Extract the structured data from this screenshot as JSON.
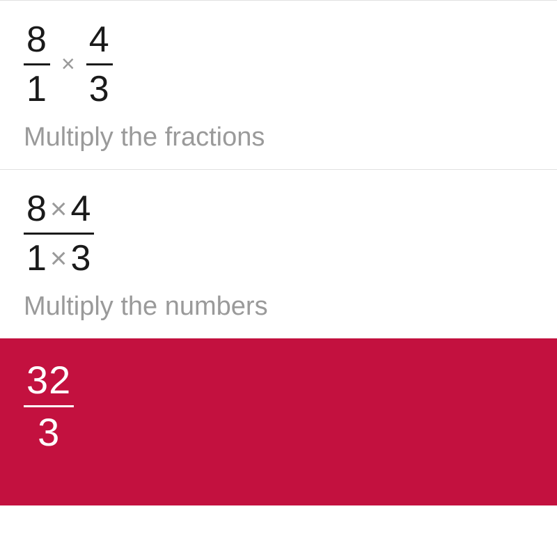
{
  "colors": {
    "background": "#ffffff",
    "text_primary": "#1a1a1a",
    "text_muted": "#9a9a9a",
    "divider": "#e0e0e0",
    "result_bg": "#c3113f",
    "result_text": "#ffffff"
  },
  "typography": {
    "math_fontsize": 52,
    "explain_fontsize": 38,
    "result_fontsize": 56
  },
  "steps": [
    {
      "type": "fraction-product",
      "left": {
        "numerator": "8",
        "denominator": "1"
      },
      "operator": "×",
      "right": {
        "numerator": "4",
        "denominator": "3"
      },
      "explain": "Multiply the fractions"
    },
    {
      "type": "fraction-single",
      "numerator_parts": [
        "8",
        "×",
        "4"
      ],
      "denominator_parts": [
        "1",
        "×",
        "3"
      ],
      "explain": "Multiply the numbers"
    }
  ],
  "result": {
    "numerator": "32",
    "denominator": "3"
  }
}
